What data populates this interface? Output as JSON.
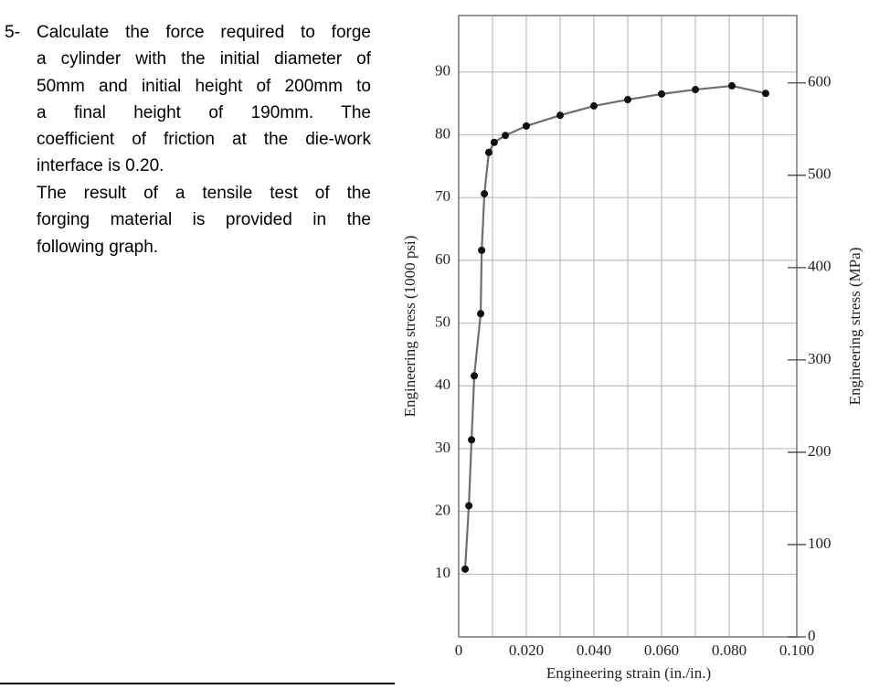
{
  "question": {
    "number": "5-",
    "lines": [
      "Calculate the force required to forge",
      "a cylinder with the initial diameter of",
      "50mm and initial height of 200mm to",
      "a final height of 190mm. The",
      "coefficient of friction at the die-work",
      "interface is 0.20."
    ],
    "note_lines": [
      "The result of a tensile test of the",
      "forging material is provided in the",
      "following graph."
    ]
  },
  "chart_data": {
    "type": "scatter",
    "ylabel": "Engineering stress (1000 psi)",
    "y2label": "Engineering stress (MPa)",
    "xlabel": "Engineering strain (in./in.)",
    "xlim": [
      0,
      0.1
    ],
    "ylim": [
      0,
      99
    ],
    "y2lim": [
      0,
      673
    ],
    "xticks": [
      0,
      {
        "value": 0.02,
        "label": "0.020"
      },
      {
        "value": 0.04,
        "label": "0.040"
      },
      {
        "value": 0.06,
        "label": "0.060"
      },
      {
        "value": 0.08,
        "label": "0.080"
      },
      {
        "value": 0.1,
        "label": "0.100"
      }
    ],
    "xgrid": [
      0.01,
      0.02,
      0.03,
      0.04,
      0.05,
      0.06,
      0.07,
      0.08,
      0.09
    ],
    "yticks": [
      10,
      20,
      30,
      40,
      50,
      60,
      70,
      80,
      90
    ],
    "y2ticks": [
      0,
      100,
      200,
      300,
      400,
      500,
      600
    ],
    "grid": true,
    "series": [
      {
        "color": "#111111",
        "line_color": "#6e6e6e",
        "x": [
          0.0019,
          0.003,
          0.0038,
          0.0046,
          0.0065,
          0.0068,
          0.0076,
          0.0089,
          0.0105,
          0.0138,
          0.02,
          0.03,
          0.04,
          0.05,
          0.06,
          0.07,
          0.0808,
          0.0908
        ],
        "values": [
          10.8,
          20.9,
          31.4,
          41.6,
          51.5,
          61.6,
          70.6,
          77.2,
          78.8,
          79.9,
          81.4,
          83.1,
          84.6,
          85.6,
          86.5,
          87.2,
          87.8,
          86.6
        ]
      }
    ]
  }
}
